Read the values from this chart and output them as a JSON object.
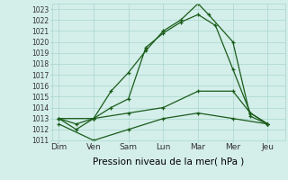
{
  "x_labels": [
    "Dim",
    "Ven",
    "Sam",
    "Lun",
    "Mar",
    "Mer",
    "Jeu"
  ],
  "x_positions": [
    0,
    1,
    2,
    3,
    4,
    5,
    6
  ],
  "lines": [
    {
      "x": [
        0,
        0.5,
        1.0,
        1.5,
        2.0,
        2.5,
        3.0,
        3.5,
        4.0,
        4.3,
        5.0,
        5.5,
        6.0
      ],
      "y": [
        1013.0,
        1012.0,
        1013.0,
        1015.5,
        1017.2,
        1019.2,
        1021.0,
        1022.0,
        1023.5,
        1022.5,
        1020.0,
        1013.2,
        1012.5
      ],
      "linewidth": 0.9,
      "linestyle": "-",
      "marker": "+"
    },
    {
      "x": [
        0,
        0.5,
        1.0,
        1.5,
        2.0,
        2.5,
        3.0,
        3.5,
        4.0,
        4.5,
        5.0,
        5.5,
        6.0
      ],
      "y": [
        1013.0,
        1012.5,
        1013.0,
        1014.0,
        1014.8,
        1019.5,
        1020.8,
        1021.8,
        1022.5,
        1021.5,
        1017.5,
        1013.5,
        1012.5
      ],
      "linewidth": 0.9,
      "linestyle": "-",
      "marker": "+"
    },
    {
      "x": [
        0,
        1.0,
        2.0,
        3.0,
        4.0,
        5.0,
        5.5,
        6.0
      ],
      "y": [
        1013.0,
        1013.0,
        1013.5,
        1014.0,
        1015.5,
        1015.5,
        1013.5,
        1012.5
      ],
      "linewidth": 0.9,
      "linestyle": "-",
      "marker": "+"
    },
    {
      "x": [
        0,
        1.0,
        2.0,
        3.0,
        4.0,
        5.0,
        6.0
      ],
      "y": [
        1012.5,
        1011.0,
        1012.0,
        1013.0,
        1013.5,
        1013.0,
        1012.5
      ],
      "linewidth": 0.9,
      "linestyle": "-",
      "marker": "+"
    }
  ],
  "ylim": [
    1011,
    1023.5
  ],
  "yticks": [
    1011,
    1012,
    1013,
    1014,
    1015,
    1016,
    1017,
    1018,
    1019,
    1020,
    1021,
    1022,
    1023
  ],
  "xlabel": "Pression niveau de la mer( hPa )",
  "background_color": "#d4eeea",
  "grid_color": "#a8d8cc",
  "line_color": "#1a5c1a",
  "tick_fontsize": 5.5,
  "xlabel_fontsize": 7.5,
  "xtick_fontsize": 6.5
}
